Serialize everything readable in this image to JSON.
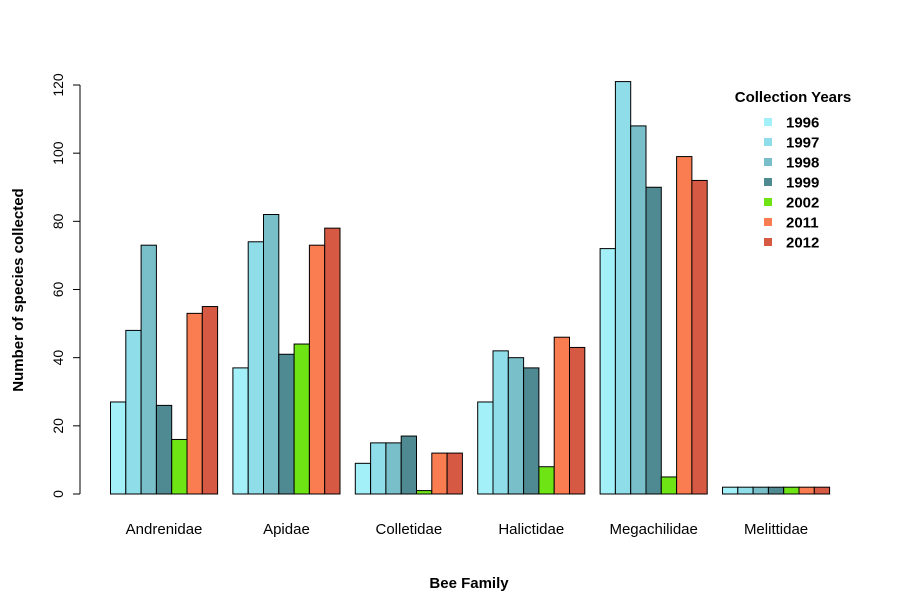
{
  "chart_data": {
    "type": "bar",
    "title": "",
    "xlabel": "Bee Family",
    "ylabel": "Number of species collected",
    "ylim": [
      0,
      120
    ],
    "yticks": [
      0,
      20,
      40,
      60,
      80,
      100,
      120
    ],
    "grid": false,
    "legend_title": "Collection Years",
    "legend_position": "top-right",
    "categories": [
      "Andrenidae",
      "Apidae",
      "Colletidae",
      "Halictidae",
      "Megachilidae",
      "Melittidae"
    ],
    "series": [
      {
        "name": "1996",
        "color": "#a4f0f8",
        "values": [
          27,
          37,
          9,
          27,
          72,
          2
        ]
      },
      {
        "name": "1997",
        "color": "#8fdde9",
        "values": [
          48,
          74,
          15,
          42,
          121,
          2
        ]
      },
      {
        "name": "1998",
        "color": "#79bfc9",
        "values": [
          73,
          82,
          15,
          40,
          108,
          2
        ]
      },
      {
        "name": "1999",
        "color": "#4f8a92",
        "values": [
          26,
          41,
          17,
          37,
          90,
          2
        ]
      },
      {
        "name": "2002",
        "color": "#6ee414",
        "values": [
          16,
          44,
          1,
          8,
          5,
          2
        ]
      },
      {
        "name": "2011",
        "color": "#f97d50",
        "values": [
          53,
          73,
          12,
          46,
          99,
          2
        ]
      },
      {
        "name": "2012",
        "color": "#d65a43",
        "values": [
          55,
          78,
          12,
          43,
          92,
          2
        ]
      }
    ]
  }
}
